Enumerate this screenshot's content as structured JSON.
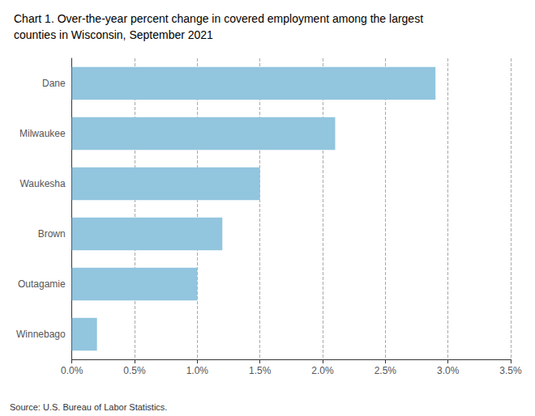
{
  "chart_data": {
    "type": "bar",
    "title": "Chart 1. Over-the-year percent change in covered employment among the largest\ncounties in Wisconsin, September 2021",
    "categories": [
      "Winnebago",
      "Outagamie",
      "Brown",
      "Waukesha",
      "Milwaukee",
      "Dane"
    ],
    "values": [
      0.002,
      0.01,
      0.012,
      0.015,
      0.021,
      0.029
    ],
    "color": "#92C5DE",
    "orientation": "horizontal",
    "xlim": [
      0,
      0.035
    ],
    "xticks": [
      {
        "value": 0.0,
        "label": "0.0%"
      },
      {
        "value": 0.005,
        "label": "0.5%"
      },
      {
        "value": 0.01,
        "label": "1.0%"
      },
      {
        "value": 0.015,
        "label": "1.5%"
      },
      {
        "value": 0.02,
        "label": "2.0%"
      },
      {
        "value": 0.025,
        "label": "2.5%"
      },
      {
        "value": 0.03,
        "label": "3.0%"
      },
      {
        "value": 0.035,
        "label": "3.5%"
      }
    ],
    "grid": true,
    "annotations": [
      "Source: U.S. Bureau of Labor Statistics."
    ]
  }
}
